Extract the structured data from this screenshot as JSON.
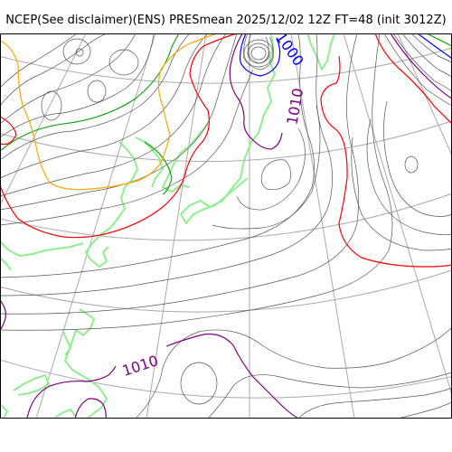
{
  "title": "NCEP(See disclaimer)(ENS) PRESmean 2025/12/02 12Z FT=48 (init 3012Z)",
  "colors": {
    "isobar": "#555555",
    "isobar_1000": "#0000ff",
    "isobar_1010": "#800080",
    "isobar_1020": "#ff0000",
    "isobar_1030": "#ffa500",
    "isobar_1040": "#00a000",
    "coastline": "#90ee90",
    "graticule": "#aaaaaa"
  },
  "contour_labels": [
    {
      "text": "1000",
      "color": "#0000ff"
    },
    {
      "text": "1010",
      "color": "#800080"
    },
    {
      "text": "1010",
      "color": "#800080"
    }
  ]
}
